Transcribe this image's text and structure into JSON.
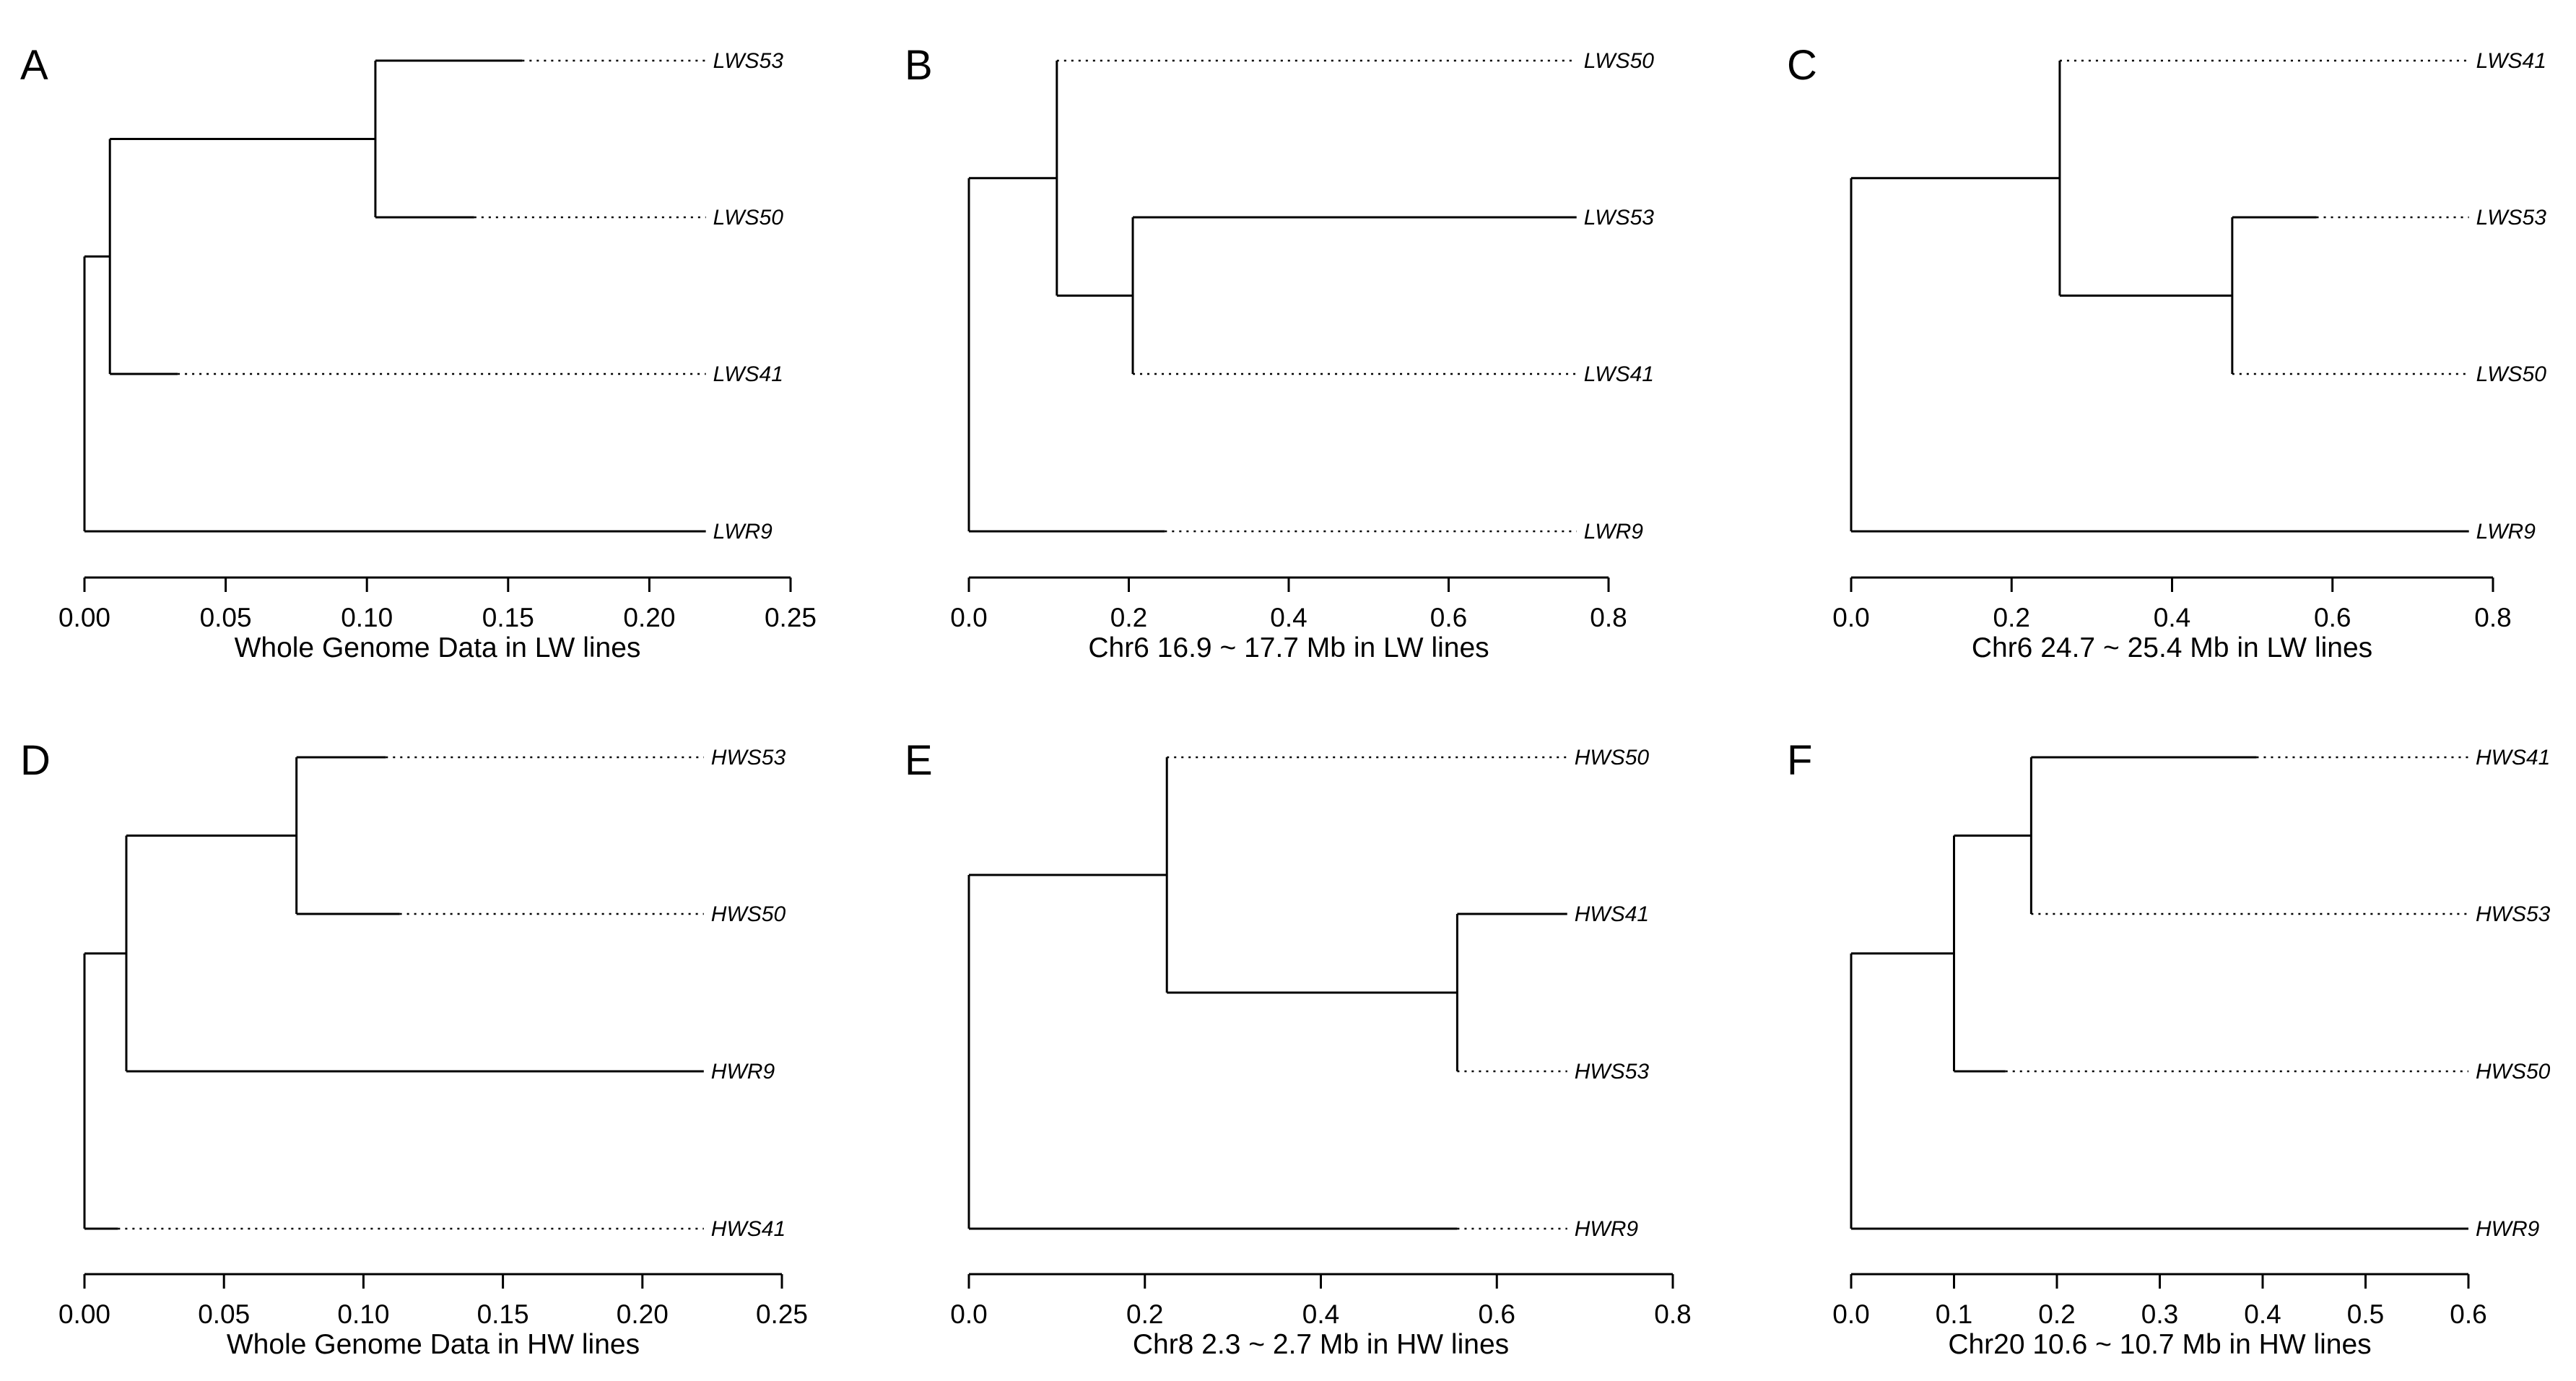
{
  "chart_data": [
    {
      "type": "dendrogram",
      "panel": "A",
      "xlabel": "Whole Genome Data in LW lines",
      "xlim": [
        0,
        0.25
      ],
      "ticks": [
        0.0,
        0.05,
        0.1,
        0.15,
        0.2,
        0.25
      ],
      "tick_labels": [
        "0.00",
        "0.05",
        "0.10",
        "0.15",
        "0.20",
        "0.25"
      ],
      "leaves": [
        {
          "label": "LWS53",
          "branch_end": 0.155
        },
        {
          "label": "LWS50",
          "branch_end": 0.138
        },
        {
          "label": "LWS41",
          "branch_end": 0.033
        },
        {
          "label": "LWR9",
          "branch_end": 0.22
        }
      ],
      "nodes": [
        {
          "children": [
            0,
            1
          ],
          "height": 0.103
        },
        {
          "children": [
            "n0",
            2
          ],
          "height": 0.009
        },
        {
          "children": [
            "n1",
            3
          ],
          "height": 0.0
        }
      ],
      "label_end": 0.22
    },
    {
      "type": "dendrogram",
      "panel": "B",
      "xlabel": "Chr6 16.9 ~ 17.7 Mb in LW lines",
      "xlim": [
        0,
        0.8
      ],
      "ticks": [
        0.0,
        0.2,
        0.4,
        0.6,
        0.8
      ],
      "tick_labels": [
        "0.0",
        "0.2",
        "0.4",
        "0.6",
        "0.8"
      ],
      "leaves": [
        {
          "label": "LWS50",
          "branch_end": 0.11
        },
        {
          "label": "LWS53",
          "branch_end": 0.76
        },
        {
          "label": "LWS41",
          "branch_end": 0.205
        },
        {
          "label": "LWR9",
          "branch_end": 0.245
        }
      ],
      "nodes": [
        {
          "children": [
            1,
            2
          ],
          "height": 0.205
        },
        {
          "children": [
            0,
            "n0"
          ],
          "height": 0.11
        },
        {
          "children": [
            "n1",
            3
          ],
          "height": 0.0
        }
      ],
      "label_end": 0.76
    },
    {
      "type": "dendrogram",
      "panel": "C",
      "xlabel": "Chr6 24.7 ~ 25.4 Mb in LW lines",
      "xlim": [
        0,
        0.8
      ],
      "ticks": [
        0.0,
        0.2,
        0.4,
        0.6,
        0.8
      ],
      "tick_labels": [
        "0.0",
        "0.2",
        "0.4",
        "0.6",
        "0.8"
      ],
      "leaves": [
        {
          "label": "LWS41",
          "branch_end": 0.26
        },
        {
          "label": "LWS53",
          "branch_end": 0.58
        },
        {
          "label": "LWS50",
          "branch_end": 0.475
        },
        {
          "label": "LWR9",
          "branch_end": 0.77
        }
      ],
      "nodes": [
        {
          "children": [
            1,
            2
          ],
          "height": 0.475
        },
        {
          "children": [
            0,
            "n0"
          ],
          "height": 0.26
        },
        {
          "children": [
            "n1",
            3
          ],
          "height": 0.0
        }
      ],
      "label_end": 0.77
    },
    {
      "type": "dendrogram",
      "panel": "D",
      "xlabel": "Whole Genome Data in HW lines",
      "xlim": [
        0,
        0.25
      ],
      "ticks": [
        0.0,
        0.05,
        0.1,
        0.15,
        0.2,
        0.25
      ],
      "tick_labels": [
        "0.00",
        "0.05",
        "0.10",
        "0.15",
        "0.20",
        "0.25"
      ],
      "leaves": [
        {
          "label": "HWS53",
          "branch_end": 0.108
        },
        {
          "label": "HWS50",
          "branch_end": 0.113
        },
        {
          "label": "HWR9",
          "branch_end": 0.222
        },
        {
          "label": "HWS41",
          "branch_end": 0.012
        }
      ],
      "nodes": [
        {
          "children": [
            0,
            1
          ],
          "height": 0.076
        },
        {
          "children": [
            "n0",
            2
          ],
          "height": 0.015
        },
        {
          "children": [
            "n1",
            3
          ],
          "height": 0.0
        }
      ],
      "label_end": 0.222
    },
    {
      "type": "dendrogram",
      "panel": "E",
      "xlabel": "Chr8 2.3 ~ 2.7 Mb in HW lines",
      "xlim": [
        0,
        0.8
      ],
      "ticks": [
        0.0,
        0.2,
        0.4,
        0.6,
        0.8
      ],
      "tick_labels": [
        "0.0",
        "0.2",
        "0.4",
        "0.6",
        "0.8"
      ],
      "leaves": [
        {
          "label": "HWS50",
          "branch_end": 0.225
        },
        {
          "label": "HWS41",
          "branch_end": 0.68
        },
        {
          "label": "HWS53",
          "branch_end": 0.555
        },
        {
          "label": "HWR9",
          "branch_end": 0.555
        }
      ],
      "nodes": [
        {
          "children": [
            1,
            2
          ],
          "height": 0.555
        },
        {
          "children": [
            0,
            "n0"
          ],
          "height": 0.225
        },
        {
          "children": [
            "n1",
            3
          ],
          "height": 0.0
        }
      ],
      "label_end": 0.68
    },
    {
      "type": "dendrogram",
      "panel": "F",
      "xlabel": "Chr20 10.6 ~ 10.7 Mb in HW lines",
      "xlim": [
        0,
        0.6
      ],
      "ticks": [
        0.0,
        0.1,
        0.2,
        0.3,
        0.4,
        0.5,
        0.6
      ],
      "tick_labels": [
        "0.0",
        "0.1",
        "0.2",
        "0.3",
        "0.4",
        "0.5",
        "0.6"
      ],
      "leaves": [
        {
          "label": "HWS41",
          "branch_end": 0.394
        },
        {
          "label": "HWS53",
          "branch_end": 0.175
        },
        {
          "label": "HWS50",
          "branch_end": 0.15
        },
        {
          "label": "HWR9",
          "branch_end": 0.6
        }
      ],
      "nodes": [
        {
          "children": [
            0,
            1
          ],
          "height": 0.175
        },
        {
          "children": [
            "n0",
            2
          ],
          "height": 0.1
        },
        {
          "children": [
            "n1",
            3
          ],
          "height": 0.0
        }
      ],
      "label_end": 0.6
    }
  ]
}
